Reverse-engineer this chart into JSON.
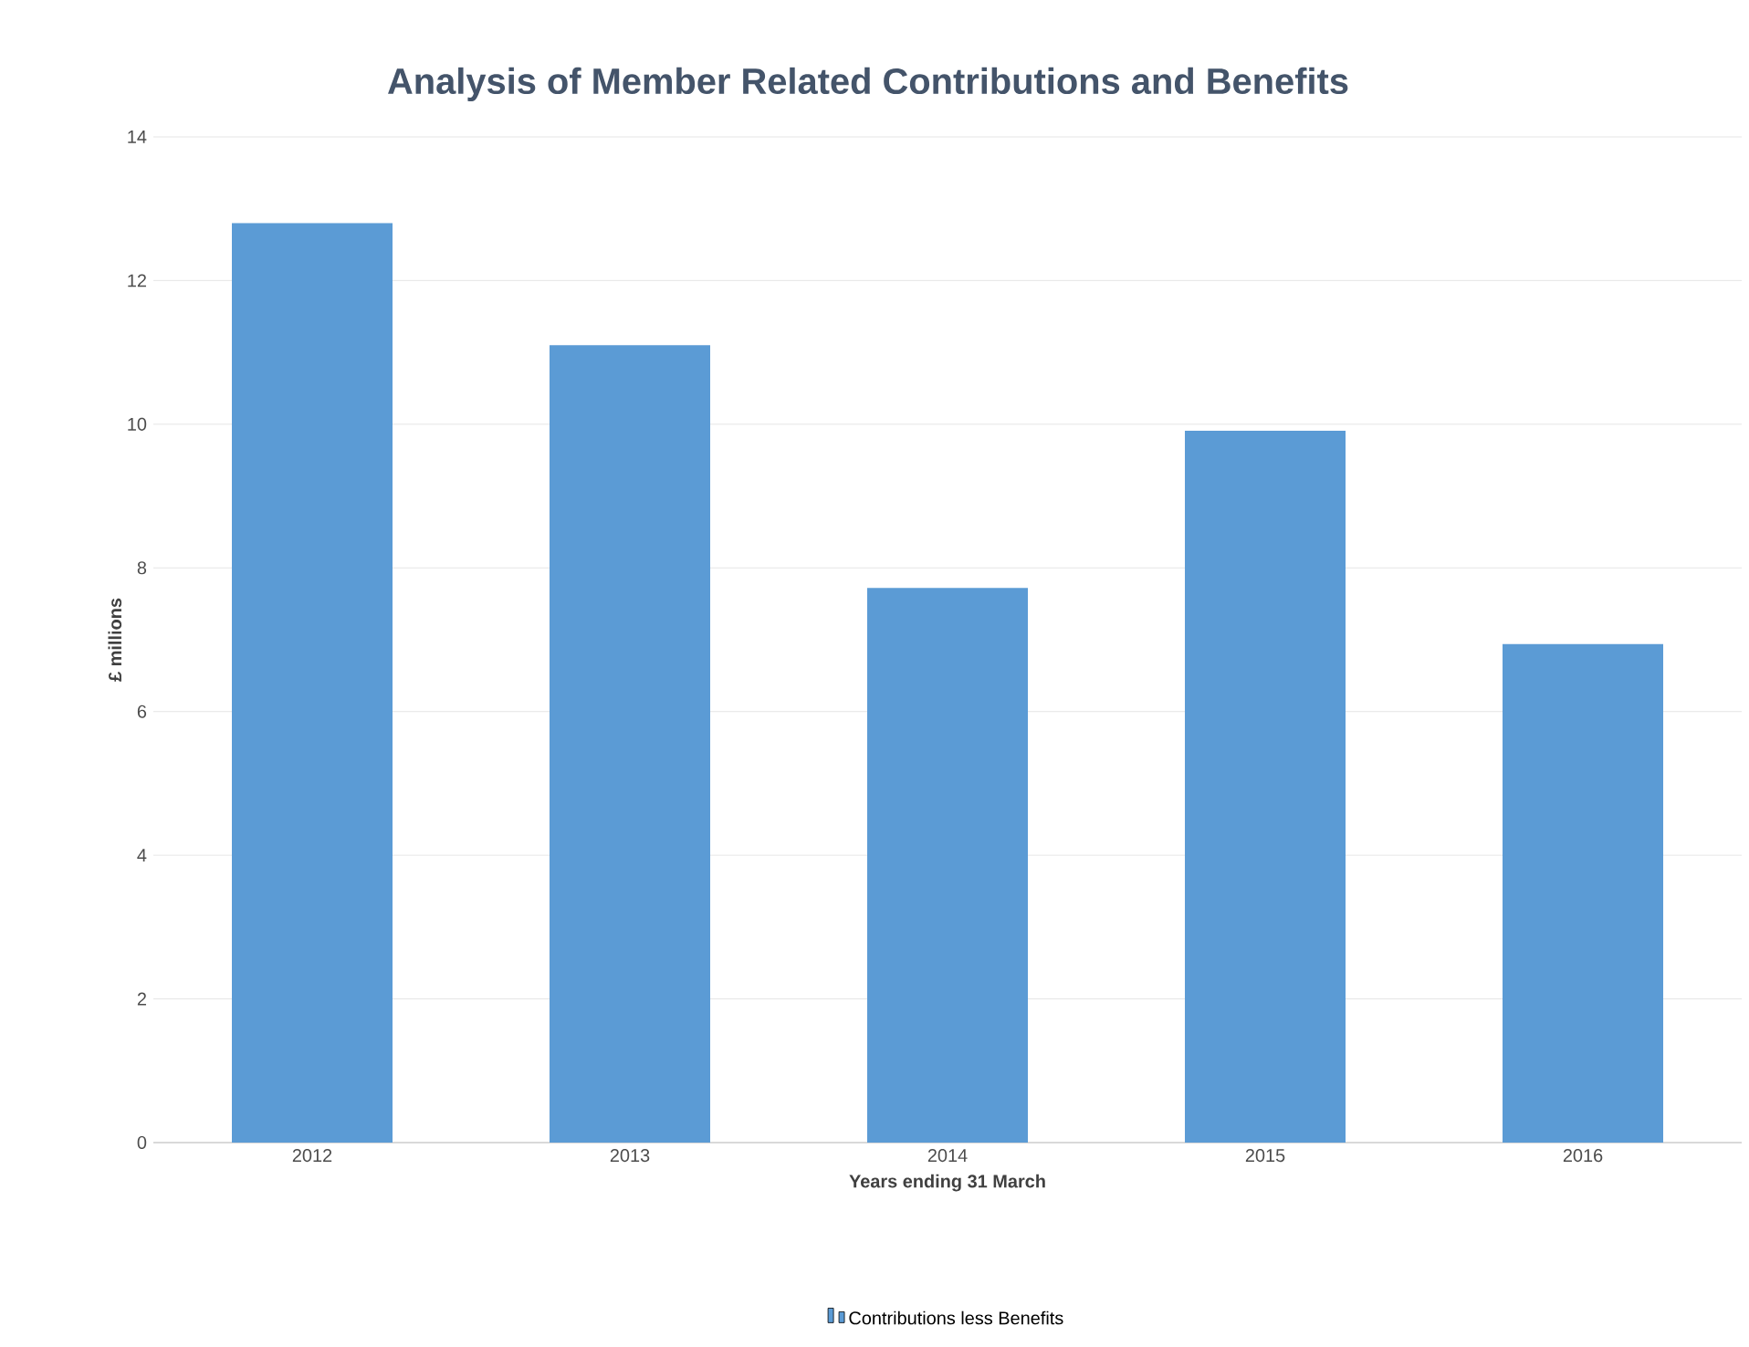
{
  "chart_data": {
    "type": "bar",
    "title": "Analysis of Member Related Contributions  and Benefits",
    "xlabel": "Years ending 31 March",
    "ylabel": "£ millions",
    "categories": [
      "2012",
      "2013",
      "2014",
      "2015",
      "2016"
    ],
    "series": [
      {
        "name": "Contributions less Benefits",
        "color": "#5b9bd5",
        "values": [
          12.8,
          11.1,
          7.72,
          9.91,
          6.94
        ]
      }
    ],
    "ylim": [
      0,
      14
    ],
    "yticks": [
      0,
      2,
      4,
      6,
      8,
      10,
      12,
      14
    ],
    "grid": "y",
    "legend": "bottom"
  }
}
